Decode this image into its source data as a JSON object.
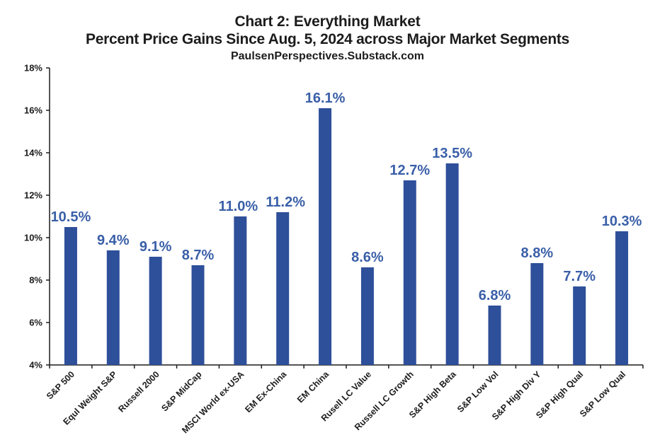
{
  "title": "Chart 2: Everything Market",
  "subtitle": "Percent Price Gains Since Aug. 5, 2024 across Major Market Segments",
  "source": "PaulsenPerspectives.Substack.com",
  "colors": {
    "bar": "#2e4f9a",
    "label": "#3a5fa8",
    "axis": "#1c1c1c"
  },
  "chart_data": {
    "type": "bar",
    "title": "Chart 2: Everything Market",
    "subtitle": "Percent Price Gains Since Aug. 5, 2024 across Major Market Segments",
    "xlabel": "",
    "ylabel": "",
    "ylim": [
      4,
      18
    ],
    "yticks": [
      4,
      6,
      8,
      10,
      12,
      14,
      16,
      18
    ],
    "ytick_labels": [
      "4%",
      "6%",
      "8%",
      "10%",
      "12%",
      "14%",
      "16%",
      "18%"
    ],
    "grid": false,
    "legend": "none",
    "categories": [
      "S&P 500",
      "Equl Weight S&P",
      "Russell 2000",
      "S&P MidCap",
      "MSCI World ex-USA",
      "EM Ex-China",
      "EM China",
      "Rusell LC Value",
      "Russell LC Growth",
      "S&P High Beta",
      "S&P Low Vol",
      "S&P High Div Y",
      "S&P High Qual",
      "S&P Low Qual"
    ],
    "values": [
      10.5,
      9.4,
      9.1,
      8.7,
      11.0,
      11.2,
      16.1,
      8.6,
      12.7,
      13.5,
      6.8,
      8.8,
      7.7,
      10.3
    ],
    "data_labels": [
      "10.5%",
      "9.4%",
      "9.1%",
      "8.7%",
      "11.0%",
      "11.2%",
      "16.1%",
      "8.6%",
      "12.7%",
      "13.5%",
      "6.8%",
      "8.8%",
      "7.7%",
      "10.3%"
    ]
  }
}
